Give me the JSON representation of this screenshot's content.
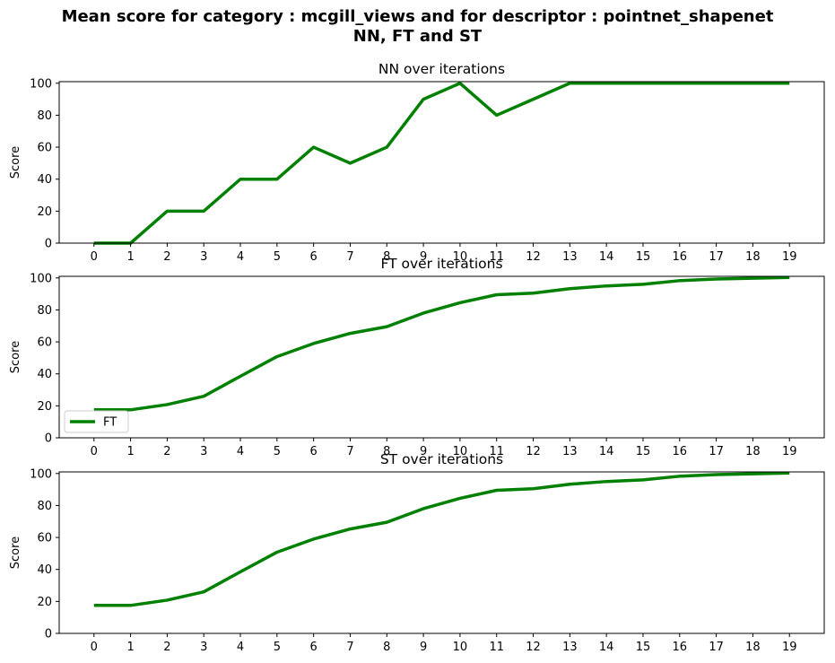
{
  "figure": {
    "title_line1": "Mean score for category : mcgill_views and for descriptor : pointnet_shapenet",
    "title_line2": "NN, FT and ST"
  },
  "chart_data": [
    {
      "type": "line",
      "title": "NN over iterations",
      "xlabel": "",
      "ylabel": "Score",
      "x": [
        0,
        1,
        2,
        3,
        4,
        5,
        6,
        7,
        8,
        9,
        10,
        11,
        12,
        13,
        14,
        15,
        16,
        17,
        18,
        19
      ],
      "series": [
        {
          "values": [
            0,
            0,
            20,
            20,
            40,
            40,
            60,
            50,
            60,
            90,
            100,
            80,
            90,
            100,
            100,
            100,
            100,
            100,
            100,
            100
          ],
          "color": "#008000"
        }
      ],
      "xlim": [
        -0.95,
        19.95
      ],
      "ylim": [
        0,
        101
      ],
      "yticks": [
        0,
        20,
        40,
        60,
        80,
        100
      ],
      "grid": false,
      "legend": null
    },
    {
      "type": "line",
      "title": "FT over iterations",
      "xlabel": "",
      "ylabel": "Score",
      "x": [
        0,
        1,
        2,
        3,
        4,
        5,
        6,
        7,
        8,
        9,
        10,
        11,
        12,
        13,
        14,
        15,
        16,
        17,
        18,
        19
      ],
      "series": [
        {
          "name": "FT",
          "values": [
            17.5,
            17.5,
            20.8,
            26,
            38.5,
            50.8,
            59,
            65.3,
            69.5,
            78,
            84.5,
            89.5,
            90.5,
            93.3,
            95,
            96,
            98.3,
            99.3,
            99.8,
            100.3
          ],
          "color": "#008000"
        }
      ],
      "xlim": [
        -0.95,
        19.95
      ],
      "ylim": [
        0,
        101
      ],
      "yticks": [
        0,
        20,
        40,
        60,
        80,
        100
      ],
      "grid": false,
      "legend": "lower-left"
    },
    {
      "type": "line",
      "title": "ST over iterations",
      "xlabel": "",
      "ylabel": "Score",
      "x": [
        0,
        1,
        2,
        3,
        4,
        5,
        6,
        7,
        8,
        9,
        10,
        11,
        12,
        13,
        14,
        15,
        16,
        17,
        18,
        19
      ],
      "series": [
        {
          "values": [
            17.5,
            17.5,
            20.8,
            26,
            38.5,
            50.8,
            59,
            65.3,
            69.5,
            78,
            84.5,
            89.5,
            90.5,
            93.3,
            95,
            96,
            98.3,
            99.3,
            99.8,
            100.3
          ],
          "color": "#008000"
        }
      ],
      "xlim": [
        -0.95,
        19.95
      ],
      "ylim": [
        0,
        101
      ],
      "yticks": [
        0,
        20,
        40,
        60,
        80,
        100
      ],
      "grid": false,
      "legend": null
    }
  ]
}
